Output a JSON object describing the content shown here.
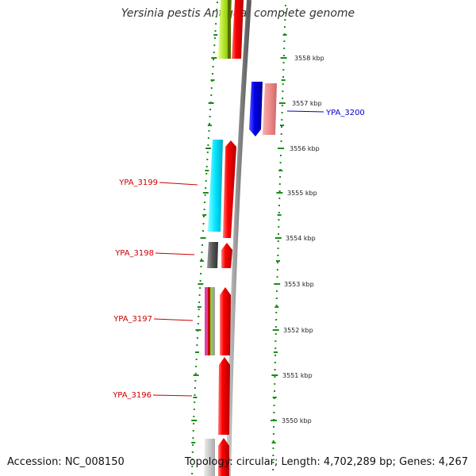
{
  "title": "Yersinia pestis Antiqua, complete genome",
  "footer": {
    "accession": "Accession: NC_008150",
    "topology": "Topology: circular; Length: 4,702,289 bp; Genes: 4,267"
  },
  "scale_ticks": [
    "3558 kbp",
    "3557 kbp",
    "3556 kbp",
    "3555 kbp",
    "3554 kbp",
    "3553 kbp",
    "3552 kbp",
    "3551 kbp",
    "3550 kbp"
  ],
  "gene_labels": [
    {
      "text": "YPA_3200",
      "color": "#0000cc"
    },
    {
      "text": "YPA_3199",
      "color": "#cc0000"
    },
    {
      "text": "YPA_3198",
      "color": "#cc0000"
    },
    {
      "text": "YPA_3197",
      "color": "#cc0000"
    },
    {
      "text": "YPA_3196",
      "color": "#cc0000"
    }
  ],
  "colors": {
    "backbone": "#8a8a8a",
    "forward_gene": "#ff0000",
    "reverse_gene": "#0000ee",
    "tick": "#1a8c1a"
  }
}
